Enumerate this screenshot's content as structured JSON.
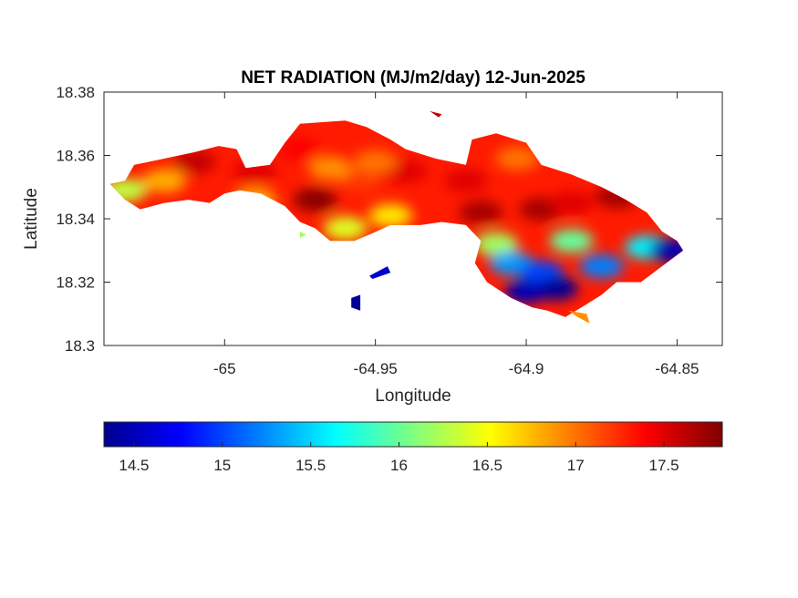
{
  "chart_data": {
    "type": "heatmap",
    "title": "NET RADIATION (MJ/m2/day) 12-Jun-2025",
    "xlabel": "Longitude",
    "ylabel": "Latitude",
    "xlim": [
      -65.04,
      -64.835
    ],
    "ylim": [
      18.3,
      18.38
    ],
    "x_ticks": [
      -65,
      -64.95,
      -64.9,
      -64.85
    ],
    "x_tick_labels": [
      "-65",
      "-64.95",
      "-64.9",
      "-64.85"
    ],
    "y_ticks": [
      18.3,
      18.32,
      18.34,
      18.36,
      18.38
    ],
    "y_tick_labels": [
      "18.3",
      "18.32",
      "18.34",
      "18.36",
      "18.38"
    ],
    "colormap": "jet",
    "colorbar": {
      "location": "bottom",
      "range": [
        14.33,
        17.83
      ],
      "ticks": [
        14.5,
        15,
        15.5,
        16,
        16.5,
        17,
        17.5
      ],
      "tick_labels": [
        "14.5",
        "15",
        "15.5",
        "16",
        "16.5",
        "17",
        "17.5"
      ]
    },
    "background": "#ffffff",
    "no_data_color": "#ffffff",
    "main_island_outline": [
      [
        -65.038,
        18.351
      ],
      [
        -65.033,
        18.352
      ],
      [
        -65.03,
        18.357
      ],
      [
        -65.02,
        18.359
      ],
      [
        -65.01,
        18.361
      ],
      [
        -65.002,
        18.363
      ],
      [
        -64.996,
        18.362
      ],
      [
        -64.993,
        18.356
      ],
      [
        -64.985,
        18.357
      ],
      [
        -64.98,
        18.364
      ],
      [
        -64.975,
        18.37
      ],
      [
        -64.96,
        18.371
      ],
      [
        -64.953,
        18.369
      ],
      [
        -64.945,
        18.365
      ],
      [
        -64.94,
        18.362
      ],
      [
        -64.93,
        18.359
      ],
      [
        -64.92,
        18.357
      ],
      [
        -64.918,
        18.365
      ],
      [
        -64.91,
        18.367
      ],
      [
        -64.9,
        18.364
      ],
      [
        -64.895,
        18.357
      ],
      [
        -64.885,
        18.354
      ],
      [
        -64.875,
        18.35
      ],
      [
        -64.867,
        18.346
      ],
      [
        -64.86,
        18.342
      ],
      [
        -64.855,
        18.336
      ],
      [
        -64.85,
        18.333
      ],
      [
        -64.848,
        18.33
      ],
      [
        -64.855,
        18.325
      ],
      [
        -64.862,
        18.32
      ],
      [
        -64.87,
        18.32
      ],
      [
        -64.875,
        18.316
      ],
      [
        -64.88,
        18.313
      ],
      [
        -64.887,
        18.309
      ],
      [
        -64.893,
        18.311
      ],
      [
        -64.898,
        18.312
      ],
      [
        -64.905,
        18.315
      ],
      [
        -64.913,
        18.32
      ],
      [
        -64.917,
        18.326
      ],
      [
        -64.915,
        18.333
      ],
      [
        -64.92,
        18.338
      ],
      [
        -64.928,
        18.339
      ],
      [
        -64.935,
        18.338
      ],
      [
        -64.945,
        18.338
      ],
      [
        -64.952,
        18.335
      ],
      [
        -64.957,
        18.333
      ],
      [
        -64.965,
        18.333
      ],
      [
        -64.97,
        18.337
      ],
      [
        -64.975,
        18.339
      ],
      [
        -64.98,
        18.344
      ],
      [
        -64.988,
        18.348
      ],
      [
        -64.995,
        18.349
      ],
      [
        -65.0,
        18.348
      ],
      [
        -65.005,
        18.345
      ],
      [
        -65.012,
        18.346
      ],
      [
        -65.02,
        18.345
      ],
      [
        -65.028,
        18.343
      ],
      [
        -65.033,
        18.346
      ]
    ],
    "value_blobs": [
      {
        "lon": -64.97,
        "lat": 18.346,
        "value": 17.8
      },
      {
        "lon": -64.915,
        "lat": 18.342,
        "value": 17.7
      },
      {
        "lon": -64.895,
        "lat": 18.343,
        "value": 17.7
      },
      {
        "lon": -64.87,
        "lat": 18.347,
        "value": 17.7
      },
      {
        "lon": -65.01,
        "lat": 18.358,
        "value": 17.6
      },
      {
        "lon": -64.99,
        "lat": 18.355,
        "value": 17.5
      },
      {
        "lon": -64.94,
        "lat": 18.355,
        "value": 17.5
      },
      {
        "lon": -64.92,
        "lat": 18.352,
        "value": 17.5
      },
      {
        "lon": -64.885,
        "lat": 18.345,
        "value": 17.5
      },
      {
        "lon": -64.975,
        "lat": 18.362,
        "value": 17.4
      },
      {
        "lon": -64.955,
        "lat": 18.352,
        "value": 17.2
      },
      {
        "lon": -64.95,
        "lat": 18.358,
        "value": 17.0
      },
      {
        "lon": -64.903,
        "lat": 18.359,
        "value": 17.0
      },
      {
        "lon": -64.965,
        "lat": 18.356,
        "value": 16.9
      },
      {
        "lon": -65.02,
        "lat": 18.352,
        "value": 16.8
      },
      {
        "lon": -64.99,
        "lat": 18.346,
        "value": 16.8
      },
      {
        "lon": -64.945,
        "lat": 18.341,
        "value": 16.6
      },
      {
        "lon": -65.033,
        "lat": 18.349,
        "value": 16.3
      },
      {
        "lon": -64.96,
        "lat": 18.337,
        "value": 16.4
      },
      {
        "lon": -64.91,
        "lat": 18.332,
        "value": 16.2
      },
      {
        "lon": -64.885,
        "lat": 18.333,
        "value": 16.0
      },
      {
        "lon": -64.86,
        "lat": 18.331,
        "value": 15.6
      },
      {
        "lon": -64.905,
        "lat": 18.326,
        "value": 15.3
      },
      {
        "lon": -64.895,
        "lat": 18.323,
        "value": 15.0
      },
      {
        "lon": -64.875,
        "lat": 18.325,
        "value": 15.2
      },
      {
        "lon": -64.89,
        "lat": 18.318,
        "value": 14.4
      },
      {
        "lon": -64.9,
        "lat": 18.317,
        "value": 14.5
      },
      {
        "lon": -64.852,
        "lat": 18.33,
        "value": 14.5
      }
    ],
    "small_islands": [
      {
        "outline": [
          [
            -64.952,
            18.322
          ],
          [
            -64.946,
            18.325
          ],
          [
            -64.945,
            18.323
          ],
          [
            -64.951,
            18.321
          ]
        ],
        "value": 14.6
      },
      {
        "outline": [
          [
            -64.958,
            18.315
          ],
          [
            -64.955,
            18.316
          ],
          [
            -64.955,
            18.311
          ],
          [
            -64.958,
            18.312
          ]
        ],
        "value": 14.4
      },
      {
        "outline": [
          [
            -64.886,
            18.311
          ],
          [
            -64.88,
            18.31
          ],
          [
            -64.879,
            18.307
          ],
          [
            -64.883,
            18.309
          ]
        ],
        "value": 16.9
      },
      {
        "outline": [
          [
            -64.975,
            18.336
          ],
          [
            -64.973,
            18.335
          ],
          [
            -64.975,
            18.334
          ]
        ],
        "value": 16.2
      },
      {
        "outline": [
          [
            -64.932,
            18.374
          ],
          [
            -64.929,
            18.372
          ],
          [
            -64.928,
            18.373
          ]
        ],
        "value": 17.6
      }
    ]
  }
}
